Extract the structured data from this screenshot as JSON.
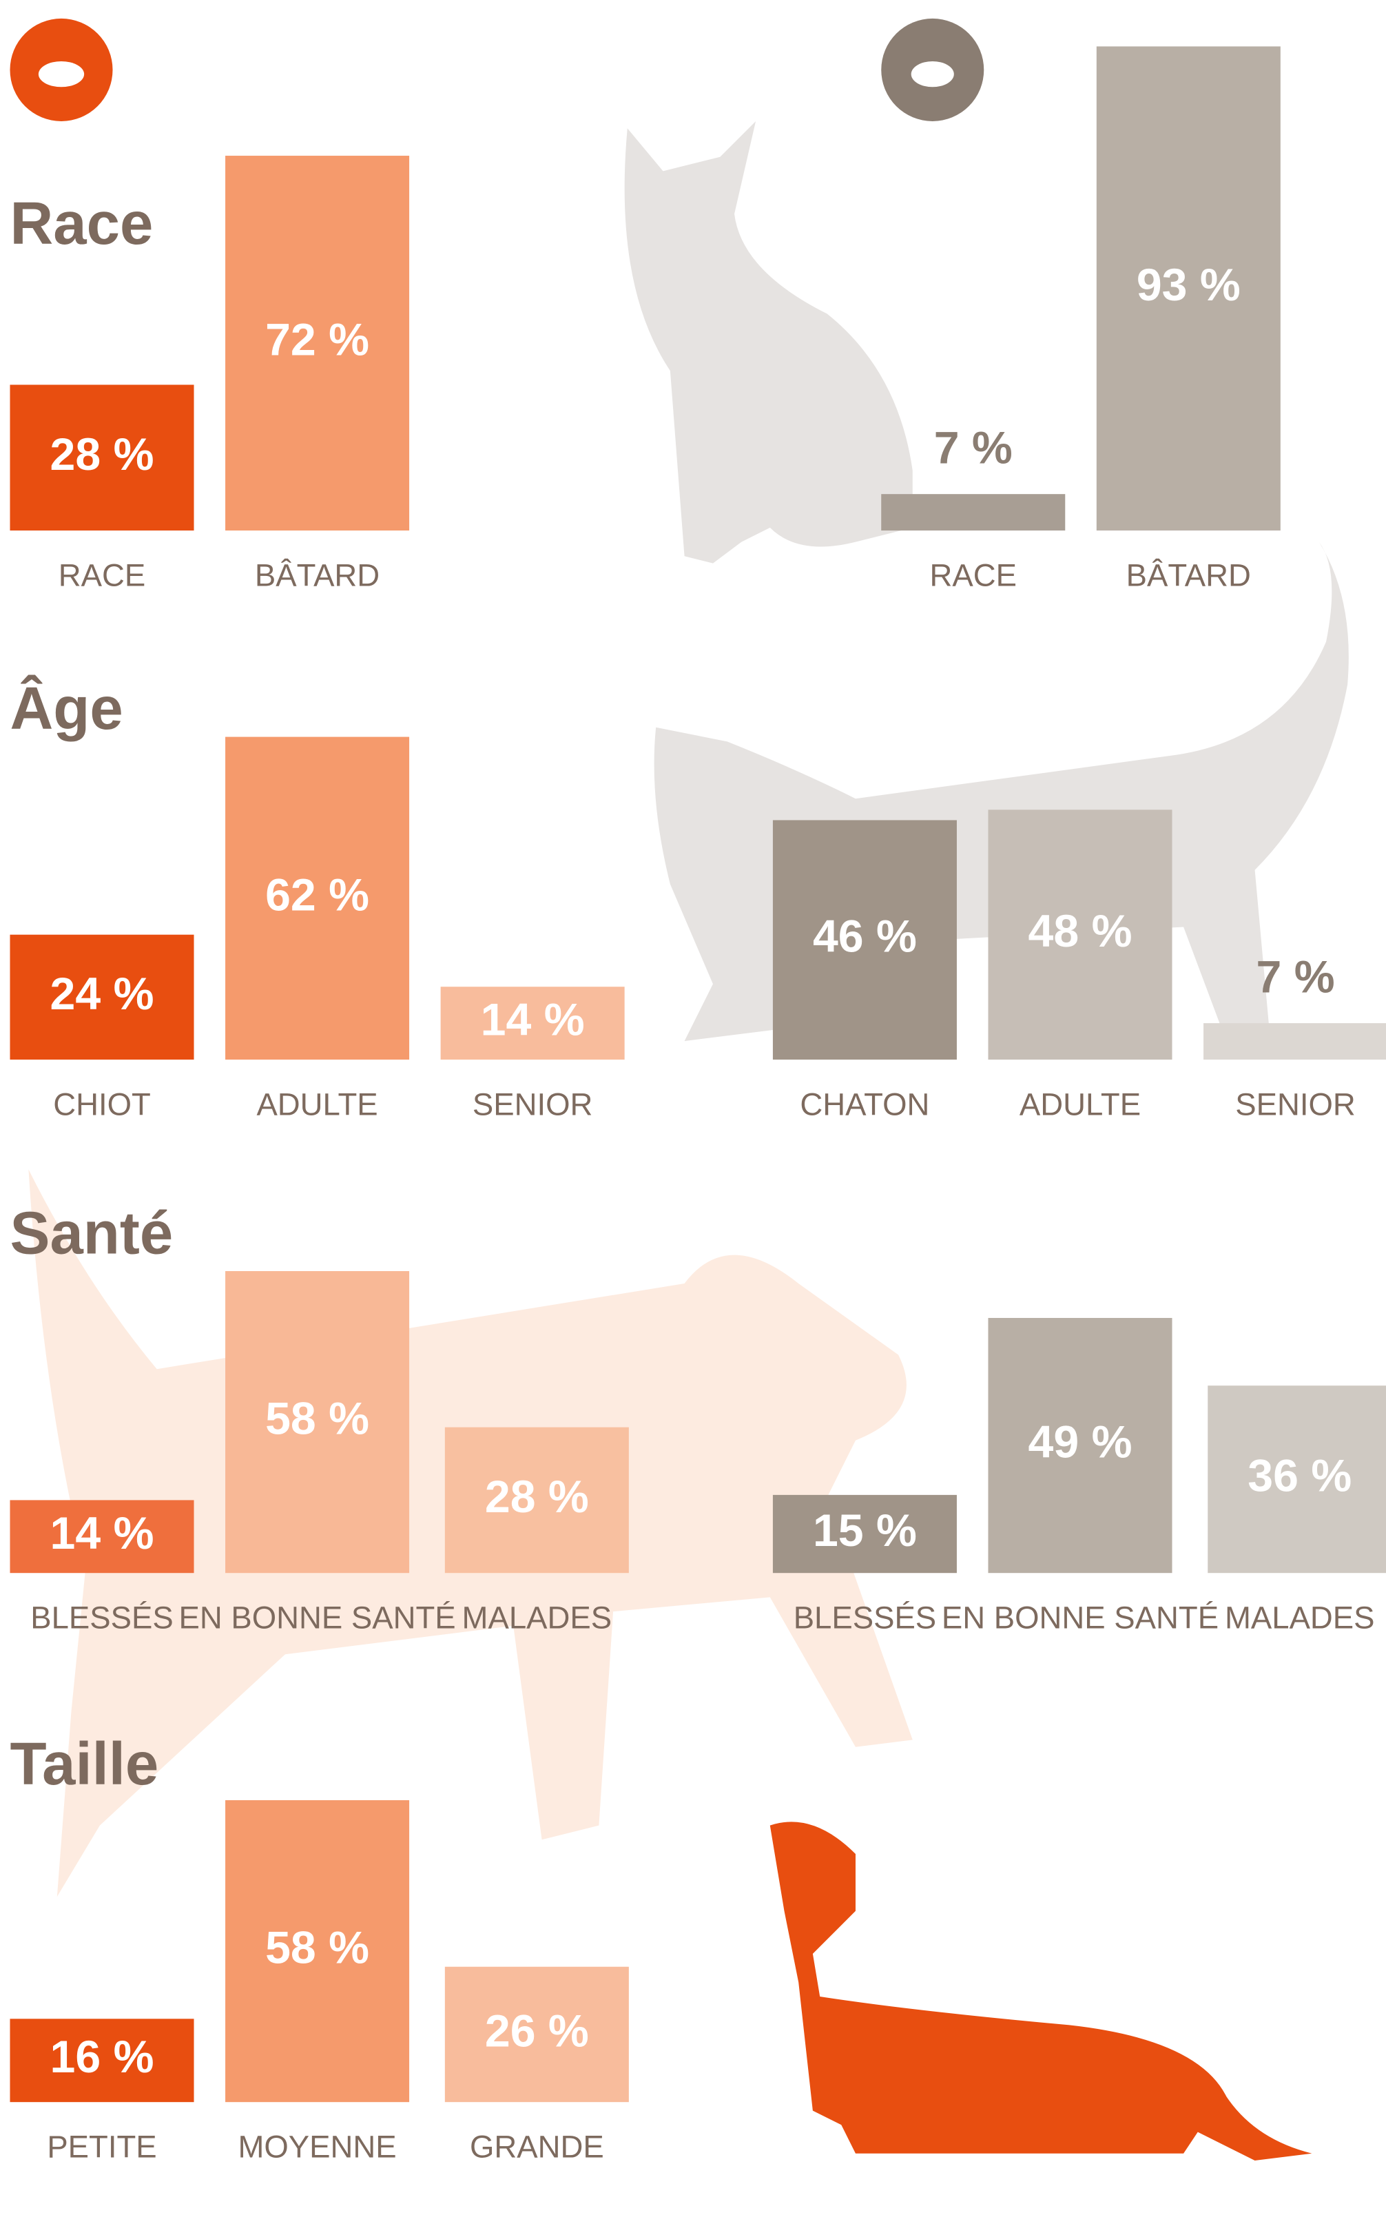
{
  "chart_data": [
    {
      "type": "bar",
      "title": "Race",
      "categories": [
        "RACE",
        "BÂTARD"
      ],
      "values": [
        28,
        72
      ],
      "value_labels": [
        "28 %",
        "72 %"
      ],
      "colors": [
        "#e84e10",
        "#f59a6c"
      ]
    },
    {
      "type": "bar",
      "categories": [
        "RACE",
        "BÂTARD"
      ],
      "values": [
        7,
        93
      ],
      "value_labels": [
        "7 %",
        "93 %"
      ],
      "colors": [
        "#a89e94",
        "#b8afa5"
      ]
    },
    {
      "type": "bar",
      "title": "Âge",
      "categories": [
        "CHIOT",
        "ADULTE",
        "SENIOR"
      ],
      "values": [
        24,
        62,
        14
      ],
      "value_labels": [
        "24 %",
        "62 %",
        "14 %"
      ],
      "colors": [
        "#e84e10",
        "#f59a6c",
        "#f8bc9c"
      ]
    },
    {
      "type": "bar",
      "categories": [
        "CHATON",
        "ADULTE",
        "SENIOR"
      ],
      "values": [
        46,
        48,
        7
      ],
      "value_labels": [
        "46 %",
        "48 %",
        "7 %"
      ],
      "colors": [
        "#a09488",
        "#c6beb6",
        "#dcd7d2"
      ]
    },
    {
      "type": "bar",
      "title": "Santé",
      "categories": [
        "BLESSÉS",
        "EN BONNE SANTÉ",
        "MALADES"
      ],
      "values": [
        14,
        58,
        28
      ],
      "value_labels": [
        "14 %",
        "58 %",
        "28 %"
      ],
      "colors": [
        "#ef6f3d",
        "#f8b896",
        "#f8c0a0"
      ]
    },
    {
      "type": "bar",
      "categories": [
        "BLESSÉS",
        "EN BONNE SANTÉ",
        "MALADES"
      ],
      "values": [
        15,
        49,
        36
      ],
      "value_labels": [
        "15 %",
        "49 %",
        "36 %"
      ],
      "colors": [
        "#a09488",
        "#b8afa5",
        "#cfc9c2"
      ]
    },
    {
      "type": "bar",
      "title": "Taille",
      "categories": [
        "PETITE",
        "MOYENNE",
        "GRANDE"
      ],
      "values": [
        16,
        58,
        26
      ],
      "value_labels": [
        "16 %",
        "58 %",
        "26 %"
      ],
      "colors": [
        "#e84e10",
        "#f59a6c",
        "#f8bc9c"
      ]
    }
  ]
}
